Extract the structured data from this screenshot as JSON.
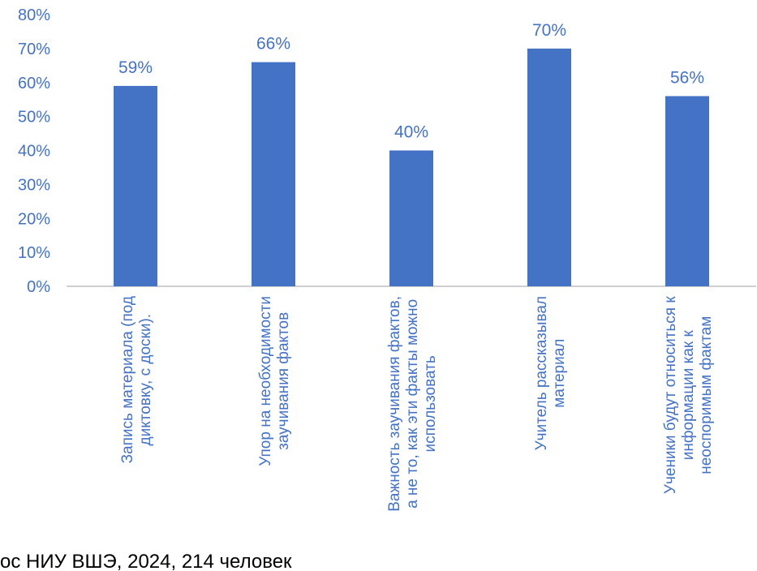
{
  "colors": {
    "bar": "#4472C4",
    "text": "#4472C4",
    "axis": "#BFBFBF",
    "source": "#000000"
  },
  "chart_data": {
    "type": "bar",
    "categories": [
      [
        "Запись материала (под",
        "диктовку, с доски)."
      ],
      [
        "Упор на необходимости",
        "заучивания фактов"
      ],
      [
        "Важность заучивания фактов,",
        "а не то, как эти факты можно",
        "использовать"
      ],
      [
        "Учитель рассказывал",
        "материал"
      ],
      [
        "Ученики будут относиться к",
        "информации как к",
        "неоспоримым фактам"
      ]
    ],
    "values": [
      59,
      66,
      40,
      70,
      56
    ],
    "data_labels": [
      "59%",
      "66%",
      "40%",
      "70%",
      "56%"
    ],
    "ylim": [
      0,
      80
    ],
    "yticks": [
      "0%",
      "10%",
      "20%",
      "30%",
      "40%",
      "50%",
      "60%",
      "70%",
      "80%"
    ],
    "grid": false,
    "legend": "none"
  },
  "source_text": "ос НИУ ВШЭ, 2024, 214 человек"
}
